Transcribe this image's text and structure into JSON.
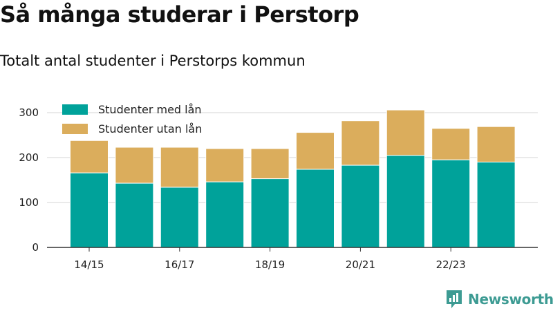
{
  "title": "Så många studerar i Perstorp",
  "subtitle": "Totalt antal studenter i Perstorps kommun",
  "brand": {
    "name": "Newsworthy",
    "icon": "newsworthy-logo-icon"
  },
  "colors": {
    "with_loan": "#00a29a",
    "without_loan": "#dbad5c",
    "grid": "#dddddd",
    "axis": "#333333",
    "brand": "#3d9b93"
  },
  "chart_data": {
    "type": "bar",
    "stacked": true,
    "categories": [
      "14/15",
      "15/16",
      "16/17",
      "17/18",
      "18/19",
      "19/20",
      "20/21",
      "21/22",
      "22/23",
      "23/24"
    ],
    "tick_labels": [
      "14/15",
      "",
      "16/17",
      "",
      "18/19",
      "",
      "20/21",
      "",
      "22/23",
      ""
    ],
    "series": [
      {
        "name": "Studenter med lån",
        "values": [
          166,
          143,
          134,
          146,
          153,
          174,
          183,
          205,
          195,
          190
        ]
      },
      {
        "name": "Studenter utan lån",
        "values": [
          72,
          80,
          89,
          74,
          67,
          82,
          99,
          101,
          70,
          79
        ]
      }
    ],
    "y_ticks": [
      "0",
      "100",
      "200",
      "300"
    ],
    "ylim": [
      0,
      300
    ],
    "grid": true,
    "legend_position": "top-left"
  }
}
